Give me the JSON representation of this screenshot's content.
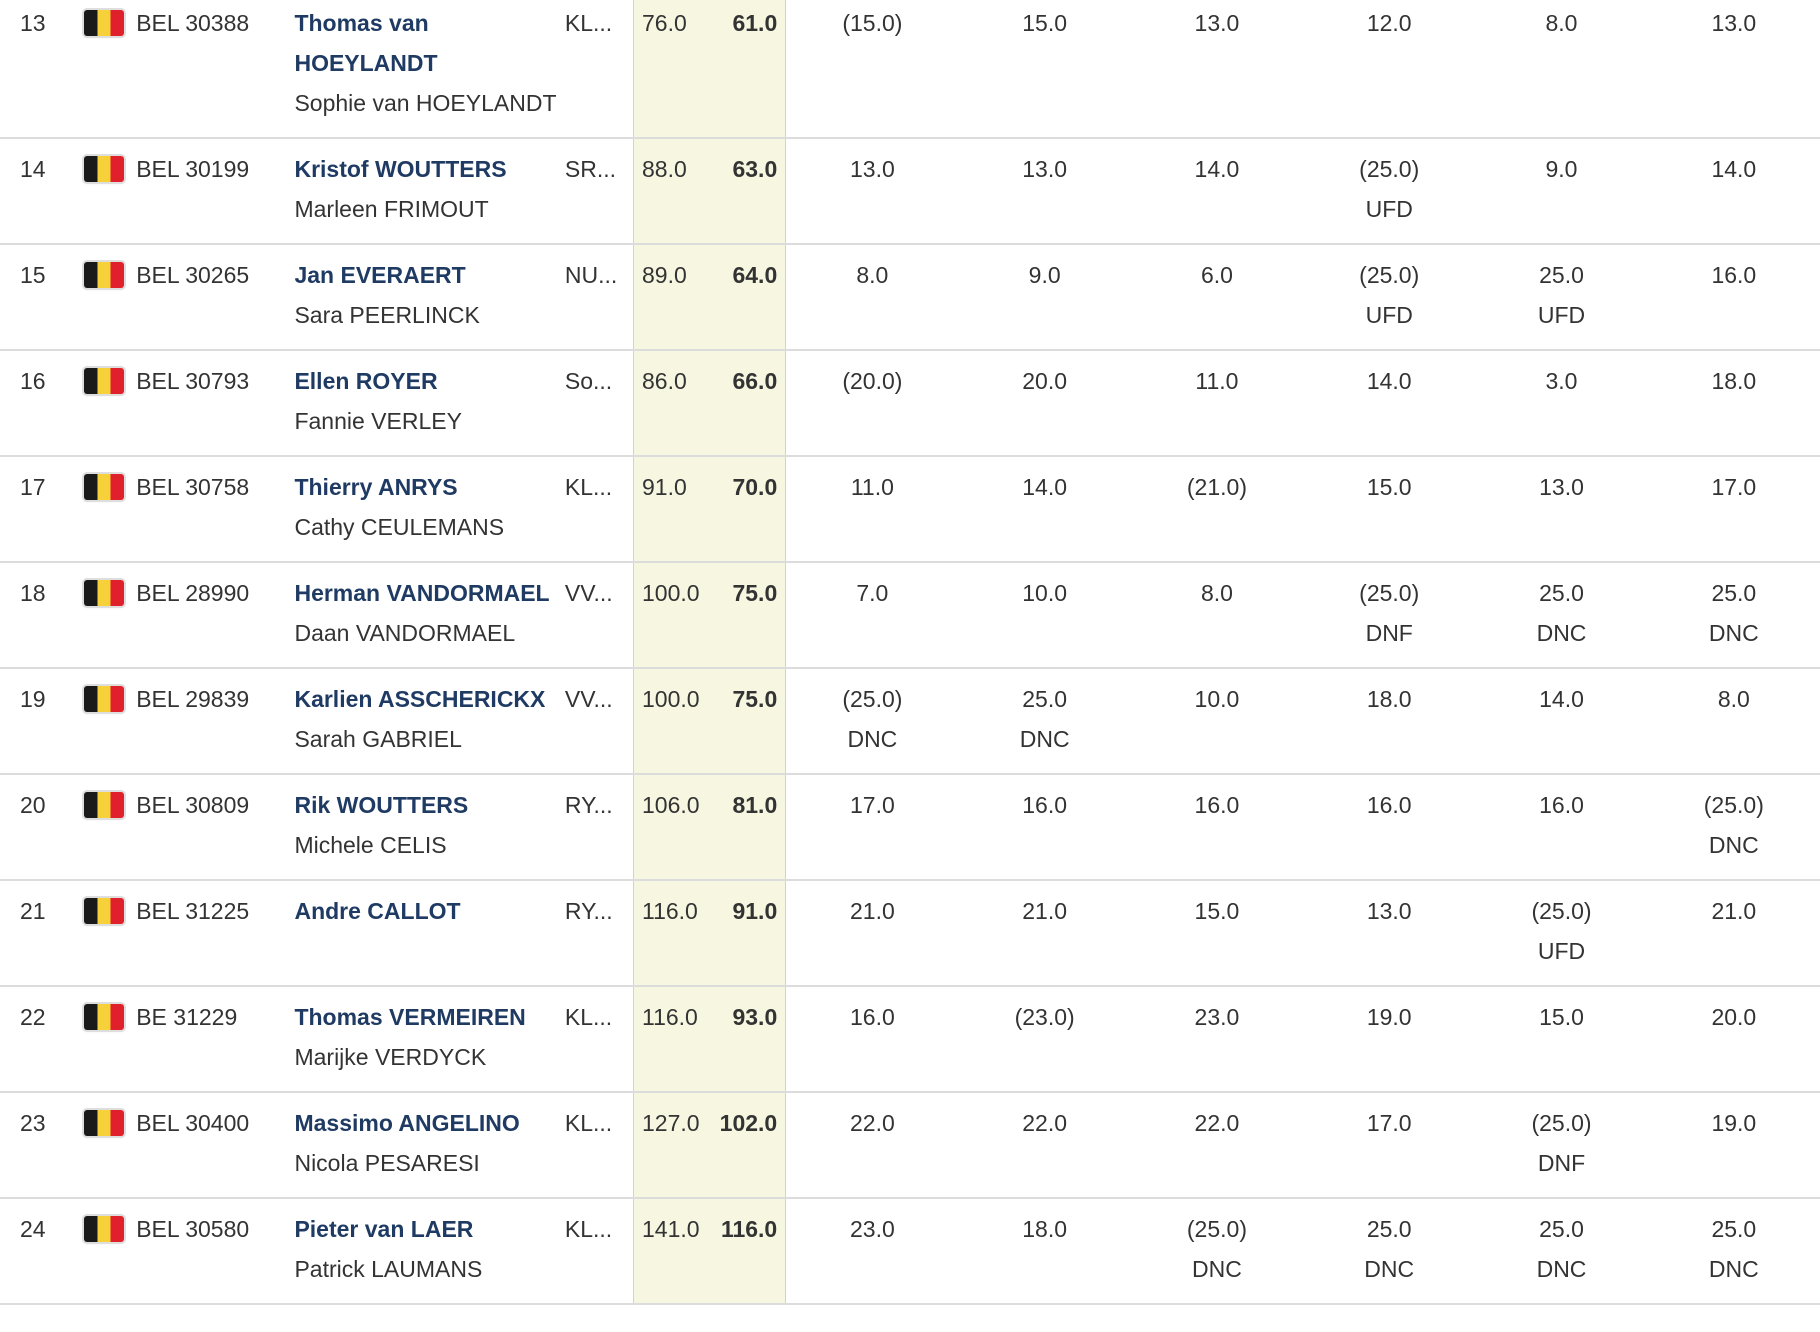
{
  "flag_colors": {
    "black": "#1a1a1a",
    "yellow": "#f6d13a",
    "red": "#e0202a"
  },
  "rows": [
    {
      "rank": "13",
      "flag": "belgium-flag-icon",
      "sail": "BEL 30388",
      "skipper": "Thomas van HOEYLANDT",
      "crew": "Sophie van HOEYLANDT",
      "club": "KL...",
      "total": "76.0",
      "net": "61.0",
      "races": [
        {
          "score": "(15.0)",
          "code": ""
        },
        {
          "score": "15.0",
          "code": ""
        },
        {
          "score": "13.0",
          "code": ""
        },
        {
          "score": "12.0",
          "code": ""
        },
        {
          "score": "8.0",
          "code": ""
        },
        {
          "score": "13.0",
          "code": ""
        }
      ]
    },
    {
      "rank": "14",
      "flag": "belgium-flag-icon",
      "sail": "BEL 30199",
      "skipper": "Kristof WOUTTERS",
      "crew": "Marleen FRIMOUT",
      "club": "SR...",
      "total": "88.0",
      "net": "63.0",
      "races": [
        {
          "score": "13.0",
          "code": ""
        },
        {
          "score": "13.0",
          "code": ""
        },
        {
          "score": "14.0",
          "code": ""
        },
        {
          "score": "(25.0)",
          "code": "UFD"
        },
        {
          "score": "9.0",
          "code": ""
        },
        {
          "score": "14.0",
          "code": ""
        }
      ]
    },
    {
      "rank": "15",
      "flag": "belgium-flag-icon",
      "sail": "BEL 30265",
      "skipper": "Jan EVERAERT",
      "crew": "Sara PEERLINCK",
      "club": "NU...",
      "total": "89.0",
      "net": "64.0",
      "races": [
        {
          "score": "8.0",
          "code": ""
        },
        {
          "score": "9.0",
          "code": ""
        },
        {
          "score": "6.0",
          "code": ""
        },
        {
          "score": "(25.0)",
          "code": "UFD"
        },
        {
          "score": "25.0",
          "code": "UFD"
        },
        {
          "score": "16.0",
          "code": ""
        }
      ]
    },
    {
      "rank": "16",
      "flag": "belgium-flag-icon",
      "sail": "BEL 30793",
      "skipper": "Ellen ROYER",
      "crew": "Fannie VERLEY",
      "club": "So...",
      "total": "86.0",
      "net": "66.0",
      "races": [
        {
          "score": "(20.0)",
          "code": ""
        },
        {
          "score": "20.0",
          "code": ""
        },
        {
          "score": "11.0",
          "code": ""
        },
        {
          "score": "14.0",
          "code": ""
        },
        {
          "score": "3.0",
          "code": ""
        },
        {
          "score": "18.0",
          "code": ""
        }
      ]
    },
    {
      "rank": "17",
      "flag": "belgium-flag-icon",
      "sail": "BEL 30758",
      "skipper": "Thierry ANRYS",
      "crew": "Cathy CEULEMANS",
      "club": "KL...",
      "total": "91.0",
      "net": "70.0",
      "races": [
        {
          "score": "11.0",
          "code": ""
        },
        {
          "score": "14.0",
          "code": ""
        },
        {
          "score": "(21.0)",
          "code": ""
        },
        {
          "score": "15.0",
          "code": ""
        },
        {
          "score": "13.0",
          "code": ""
        },
        {
          "score": "17.0",
          "code": ""
        }
      ]
    },
    {
      "rank": "18",
      "flag": "belgium-flag-icon",
      "sail": "BEL 28990",
      "skipper": "Herman VANDORMAEL",
      "crew": "Daan VANDORMAEL",
      "club": "VV...",
      "total": "100.0",
      "net": "75.0",
      "races": [
        {
          "score": "7.0",
          "code": ""
        },
        {
          "score": "10.0",
          "code": ""
        },
        {
          "score": "8.0",
          "code": ""
        },
        {
          "score": "(25.0)",
          "code": "DNF"
        },
        {
          "score": "25.0",
          "code": "DNC"
        },
        {
          "score": "25.0",
          "code": "DNC"
        }
      ]
    },
    {
      "rank": "19",
      "flag": "belgium-flag-icon",
      "sail": "BEL 29839",
      "skipper": "Karlien ASSCHERICKX",
      "crew": "Sarah GABRIEL",
      "club": "VV...",
      "total": "100.0",
      "net": "75.0",
      "races": [
        {
          "score": "(25.0)",
          "code": "DNC"
        },
        {
          "score": "25.0",
          "code": "DNC"
        },
        {
          "score": "10.0",
          "code": ""
        },
        {
          "score": "18.0",
          "code": ""
        },
        {
          "score": "14.0",
          "code": ""
        },
        {
          "score": "8.0",
          "code": ""
        }
      ]
    },
    {
      "rank": "20",
      "flag": "belgium-flag-icon",
      "sail": "BEL 30809",
      "skipper": "Rik WOUTTERS",
      "crew": "Michele CELIS",
      "club": "RY...",
      "total": "106.0",
      "net": "81.0",
      "races": [
        {
          "score": "17.0",
          "code": ""
        },
        {
          "score": "16.0",
          "code": ""
        },
        {
          "score": "16.0",
          "code": ""
        },
        {
          "score": "16.0",
          "code": ""
        },
        {
          "score": "16.0",
          "code": ""
        },
        {
          "score": "(25.0)",
          "code": "DNC"
        }
      ]
    },
    {
      "rank": "21",
      "flag": "belgium-flag-icon",
      "sail": "BEL 31225",
      "skipper": "Andre CALLOT",
      "crew": "",
      "club": "RY...",
      "total": "116.0",
      "net": "91.0",
      "races": [
        {
          "score": "21.0",
          "code": ""
        },
        {
          "score": "21.0",
          "code": ""
        },
        {
          "score": "15.0",
          "code": ""
        },
        {
          "score": "13.0",
          "code": ""
        },
        {
          "score": "(25.0)",
          "code": "UFD"
        },
        {
          "score": "21.0",
          "code": ""
        }
      ]
    },
    {
      "rank": "22",
      "flag": "belgium-flag-icon",
      "sail": "BE 31229",
      "skipper": "Thomas VERMEIREN",
      "crew": "Marijke VERDYCK",
      "club": "KL...",
      "total": "116.0",
      "net": "93.0",
      "races": [
        {
          "score": "16.0",
          "code": ""
        },
        {
          "score": "(23.0)",
          "code": ""
        },
        {
          "score": "23.0",
          "code": ""
        },
        {
          "score": "19.0",
          "code": ""
        },
        {
          "score": "15.0",
          "code": ""
        },
        {
          "score": "20.0",
          "code": ""
        }
      ]
    },
    {
      "rank": "23",
      "flag": "belgium-flag-icon",
      "sail": "BEL 30400",
      "skipper": "Massimo ANGELINO",
      "crew": "Nicola PESARESI",
      "club": "KL...",
      "total": "127.0",
      "net": "102.0",
      "races": [
        {
          "score": "22.0",
          "code": ""
        },
        {
          "score": "22.0",
          "code": ""
        },
        {
          "score": "22.0",
          "code": ""
        },
        {
          "score": "17.0",
          "code": ""
        },
        {
          "score": "(25.0)",
          "code": "DNF"
        },
        {
          "score": "19.0",
          "code": ""
        }
      ]
    },
    {
      "rank": "24",
      "flag": "belgium-flag-icon",
      "sail": "BEL 30580",
      "skipper": "Pieter van LAER",
      "crew": "Patrick LAUMANS",
      "club": "KL...",
      "total": "141.0",
      "net": "116.0",
      "races": [
        {
          "score": "23.0",
          "code": ""
        },
        {
          "score": "18.0",
          "code": ""
        },
        {
          "score": "(25.0)",
          "code": "DNC"
        },
        {
          "score": "25.0",
          "code": "DNC"
        },
        {
          "score": "25.0",
          "code": "DNC"
        },
        {
          "score": "25.0",
          "code": "DNC"
        }
      ]
    }
  ]
}
